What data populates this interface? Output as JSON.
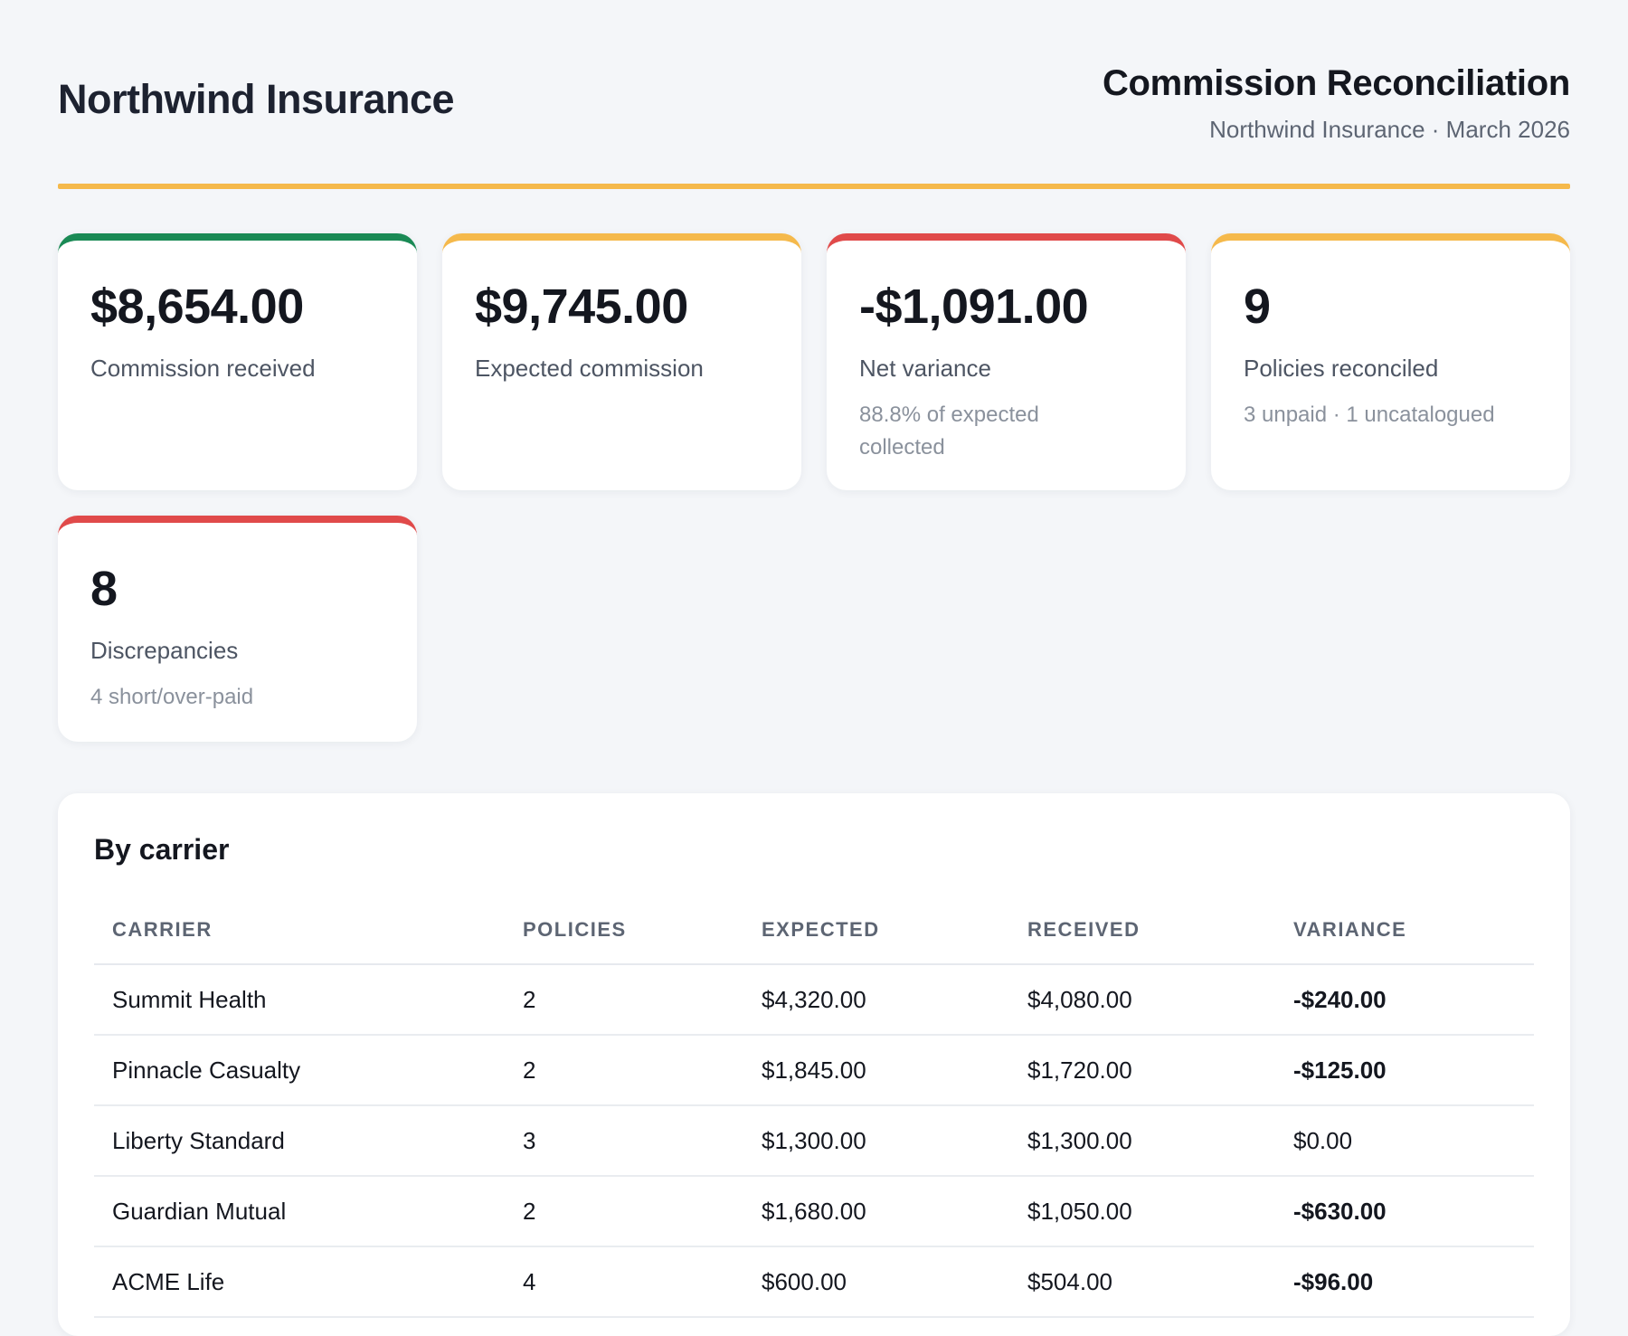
{
  "header": {
    "brand": "Northwind Insurance",
    "title": "Commission Reconciliation",
    "subtitle": "Northwind Insurance · March 2026"
  },
  "colors": {
    "accent": "#f5b94b",
    "positive": "#1a8a55",
    "negative": "#e04a4a"
  },
  "kpis": [
    {
      "value": "$8,654.00",
      "label": "Commission received",
      "note": "",
      "status": "green"
    },
    {
      "value": "$9,745.00",
      "label": "Expected commission",
      "note": "",
      "status": "amber"
    },
    {
      "value": "-$1,091.00",
      "label": "Net variance",
      "note": "88.8% of expected collected",
      "status": "red"
    },
    {
      "value": "9",
      "label": "Policies reconciled",
      "note": "3 unpaid · 1 uncatalogued",
      "status": "amber"
    },
    {
      "value": "8",
      "label": "Discrepancies",
      "note": "4 short/over-paid",
      "status": "red"
    }
  ],
  "carrier_table": {
    "title": "By carrier",
    "columns": [
      "CARRIER",
      "POLICIES",
      "EXPECTED",
      "RECEIVED",
      "VARIANCE"
    ],
    "rows": [
      {
        "carrier": "Summit Health",
        "policies": "2",
        "expected": "$4,320.00",
        "received": "$4,080.00",
        "variance": "-$240.00"
      },
      {
        "carrier": "Pinnacle Casualty",
        "policies": "2",
        "expected": "$1,845.00",
        "received": "$1,720.00",
        "variance": "-$125.00"
      },
      {
        "carrier": "Liberty Standard",
        "policies": "3",
        "expected": "$1,300.00",
        "received": "$1,300.00",
        "variance": "$0.00"
      },
      {
        "carrier": "Guardian Mutual",
        "policies": "2",
        "expected": "$1,680.00",
        "received": "$1,050.00",
        "variance": "-$630.00"
      },
      {
        "carrier": "ACME Life",
        "policies": "4",
        "expected": "$600.00",
        "received": "$504.00",
        "variance": "-$96.00"
      }
    ]
  }
}
